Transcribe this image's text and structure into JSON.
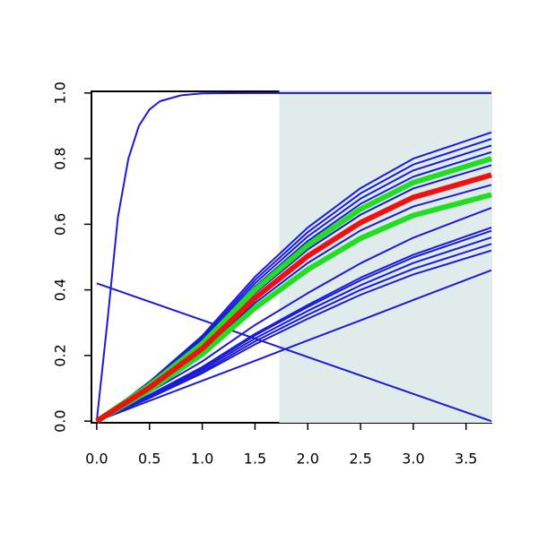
{
  "chart_data": {
    "type": "line",
    "x": [
      0,
      0.5,
      1,
      1.5,
      2,
      2.5,
      3,
      3.74
    ],
    "xlim": [
      -0.05,
      3.74
    ],
    "ylim": [
      -0.005,
      1.005
    ],
    "xticks": [
      {
        "value": 0,
        "label": "0.0"
      },
      0.5,
      {
        "value": 1,
        "label": "1.0"
      },
      1.5,
      {
        "value": 2,
        "label": "2.0"
      },
      2.5,
      {
        "value": 3,
        "label": "3.0"
      },
      3.5
    ],
    "yticks": [
      {
        "value": 0,
        "label": "0.0"
      },
      0.2,
      0.4,
      0.6,
      0.8,
      {
        "value": 1,
        "label": "1.0"
      }
    ],
    "shaded_region": {
      "xlim": [
        1.73,
        3.74
      ],
      "color": "#e0ecec"
    },
    "series": [
      {
        "color": "#1a1ad8",
        "line_width": 2,
        "x": [
          0,
          0.1,
          0.2,
          0.3,
          0.4,
          0.5,
          0.6,
          0.8,
          1.0,
          1.5,
          3.74
        ],
        "values": [
          0,
          0.3,
          0.62,
          0.8,
          0.9,
          0.95,
          0.975,
          0.993,
          0.999,
          1,
          1
        ]
      },
      {
        "color": "#1a1ad8",
        "line_width": 2,
        "x": [
          0,
          3.74
        ],
        "values": [
          0.42,
          0
        ]
      },
      {
        "color": "#1a1ad8",
        "line_width": 2,
        "values": [
          0,
          0.12,
          0.26,
          0.44,
          0.59,
          0.71,
          0.8,
          0.88
        ]
      },
      {
        "color": "#1a1ad8",
        "line_width": 2,
        "values": [
          0,
          0.117,
          0.254,
          0.43,
          0.576,
          0.694,
          0.782,
          0.86
        ]
      },
      {
        "color": "#1a1ad8",
        "line_width": 2,
        "values": [
          0,
          0.114,
          0.248,
          0.42,
          0.563,
          0.678,
          0.764,
          0.84
        ]
      },
      {
        "color": "#1a1ad8",
        "line_width": 2,
        "values": [
          0,
          0.112,
          0.242,
          0.41,
          0.549,
          0.662,
          0.745,
          0.82
        ]
      },
      {
        "color": "#1a1ad8",
        "line_width": 2,
        "values": [
          0,
          0.106,
          0.23,
          0.39,
          0.523,
          0.629,
          0.709,
          0.78
        ]
      },
      {
        "color": "#1a1ad8",
        "line_width": 2,
        "values": [
          0,
          0.098,
          0.212,
          0.36,
          0.482,
          0.581,
          0.654,
          0.72
        ]
      },
      {
        "color": "#1a1ad8",
        "line_width": 2,
        "values": [
          0,
          0.088,
          0.182,
          0.293,
          0.39,
          0.481,
          0.559,
          0.65
        ]
      },
      {
        "color": "#1a1ad8",
        "line_width": 2,
        "values": [
          0,
          0.08,
          0.165,
          0.266,
          0.354,
          0.437,
          0.507,
          0.59
        ]
      },
      {
        "color": "#1a1ad8",
        "line_width": 2,
        "values": [
          0,
          0.078,
          0.162,
          0.261,
          0.348,
          0.429,
          0.499,
          0.58
        ]
      },
      {
        "color": "#1a1ad8",
        "line_width": 2,
        "values": [
          0,
          0.076,
          0.157,
          0.252,
          0.336,
          0.414,
          0.482,
          0.56
        ]
      },
      {
        "color": "#1a1ad8",
        "line_width": 2,
        "values": [
          0,
          0.073,
          0.151,
          0.243,
          0.324,
          0.4,
          0.464,
          0.54
        ]
      },
      {
        "color": "#1a1ad8",
        "line_width": 2,
        "values": [
          0,
          0.07,
          0.146,
          0.234,
          0.312,
          0.385,
          0.447,
          0.52
        ]
      },
      {
        "color": "#1a1ad8",
        "line_width": 2,
        "values": [
          0,
          0.062,
          0.123,
          0.184,
          0.246,
          0.307,
          0.369,
          0.46
        ]
      },
      {
        "color": "#22dd22",
        "line_width": 6,
        "values": [
          0,
          0.109,
          0.236,
          0.4,
          0.536,
          0.646,
          0.727,
          0.8
        ]
      },
      {
        "color": "#22dd22",
        "line_width": 6,
        "values": [
          0,
          0.094,
          0.204,
          0.345,
          0.462,
          0.557,
          0.627,
          0.69
        ]
      },
      {
        "color": "#ee1111",
        "line_width": 6,
        "values": [
          0,
          0.102,
          0.221,
          0.375,
          0.503,
          0.605,
          0.682,
          0.75
        ]
      }
    ]
  }
}
